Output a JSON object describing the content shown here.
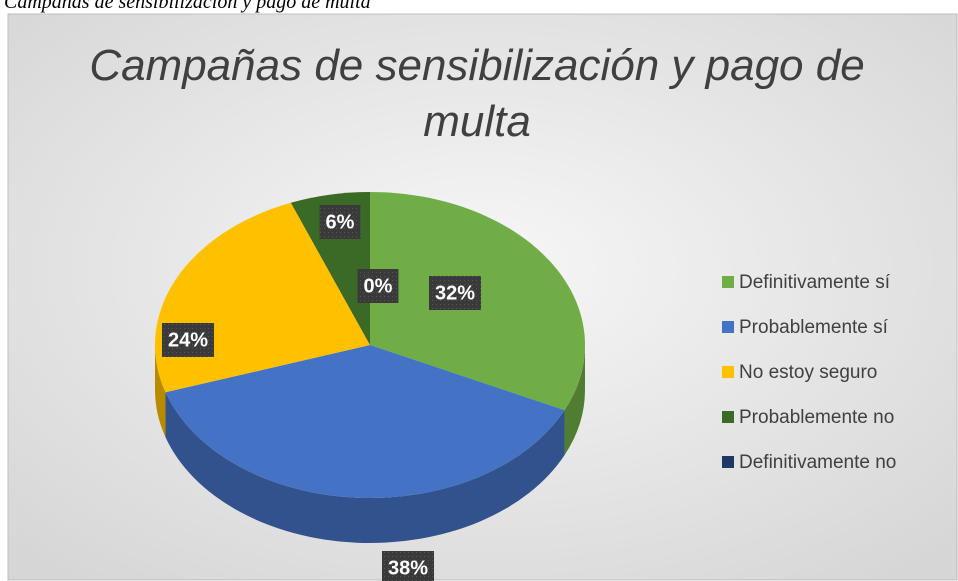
{
  "caption": "Campañas de sensibilización y pago de multa",
  "chart_data": {
    "type": "pie",
    "title": "Campañas de sensibilización y pago de multa",
    "categories": [
      "Definitivamente sí",
      "Probablemente sí",
      "No estoy seguro",
      "Probablemente no",
      "Definitivamente no"
    ],
    "values": [
      32,
      38,
      24,
      6,
      0
    ],
    "value_labels": [
      "32%",
      "38%",
      "24%",
      "6%",
      "0%"
    ],
    "colors": [
      "#70ad47",
      "#4472c4",
      "#ffc000",
      "#3b6a26",
      "#203864"
    ],
    "legend": "right"
  }
}
